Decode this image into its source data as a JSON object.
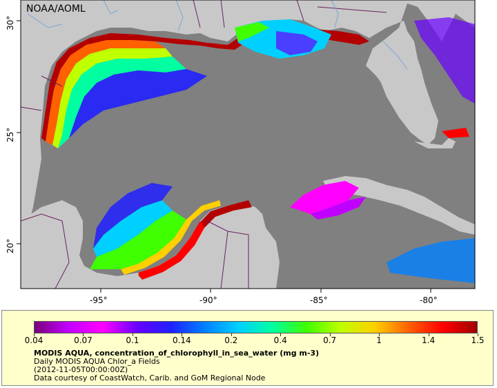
{
  "map": {
    "credit": "NOAA/AOML",
    "lon_labels": [
      "-95°",
      "-90°",
      "-85°",
      "-80°"
    ],
    "lat_labels": [
      "30°",
      "25°",
      "20°"
    ],
    "lon_range": [
      -98.5,
      -78
    ],
    "lat_range": [
      17.8,
      31
    ],
    "colors": {
      "land": "#c8c8c8",
      "ocean_nodata": "#808080",
      "border": "#6a1f5e",
      "river": "#7aa6d6"
    }
  },
  "legend": {
    "scale": "log",
    "ticks": [
      "0.04",
      "0.07",
      "0.1",
      "0.14",
      "0.2",
      "0.4",
      "0.7",
      "1",
      "1.4",
      "1.5"
    ],
    "title": "MODIS AQUA, concentration_of_chlorophyll_in_sea_water (mg m-3)",
    "line2": "Daily MODIS AQUA Chlor_a Fields",
    "line3": "(2012-11-05T00:00:00Z)",
    "line4": "Data courtesy of CoastWatch, Carib. and GoM Regional Node",
    "palette": [
      "#7a007a",
      "#c000ff",
      "#ff00ff",
      "#6a00ff",
      "#2020ff",
      "#0080ff",
      "#00d0ff",
      "#00ffa0",
      "#40ff00",
      "#c0ff00",
      "#ffd000",
      "#ff6000",
      "#ff0000",
      "#a00000"
    ]
  }
}
